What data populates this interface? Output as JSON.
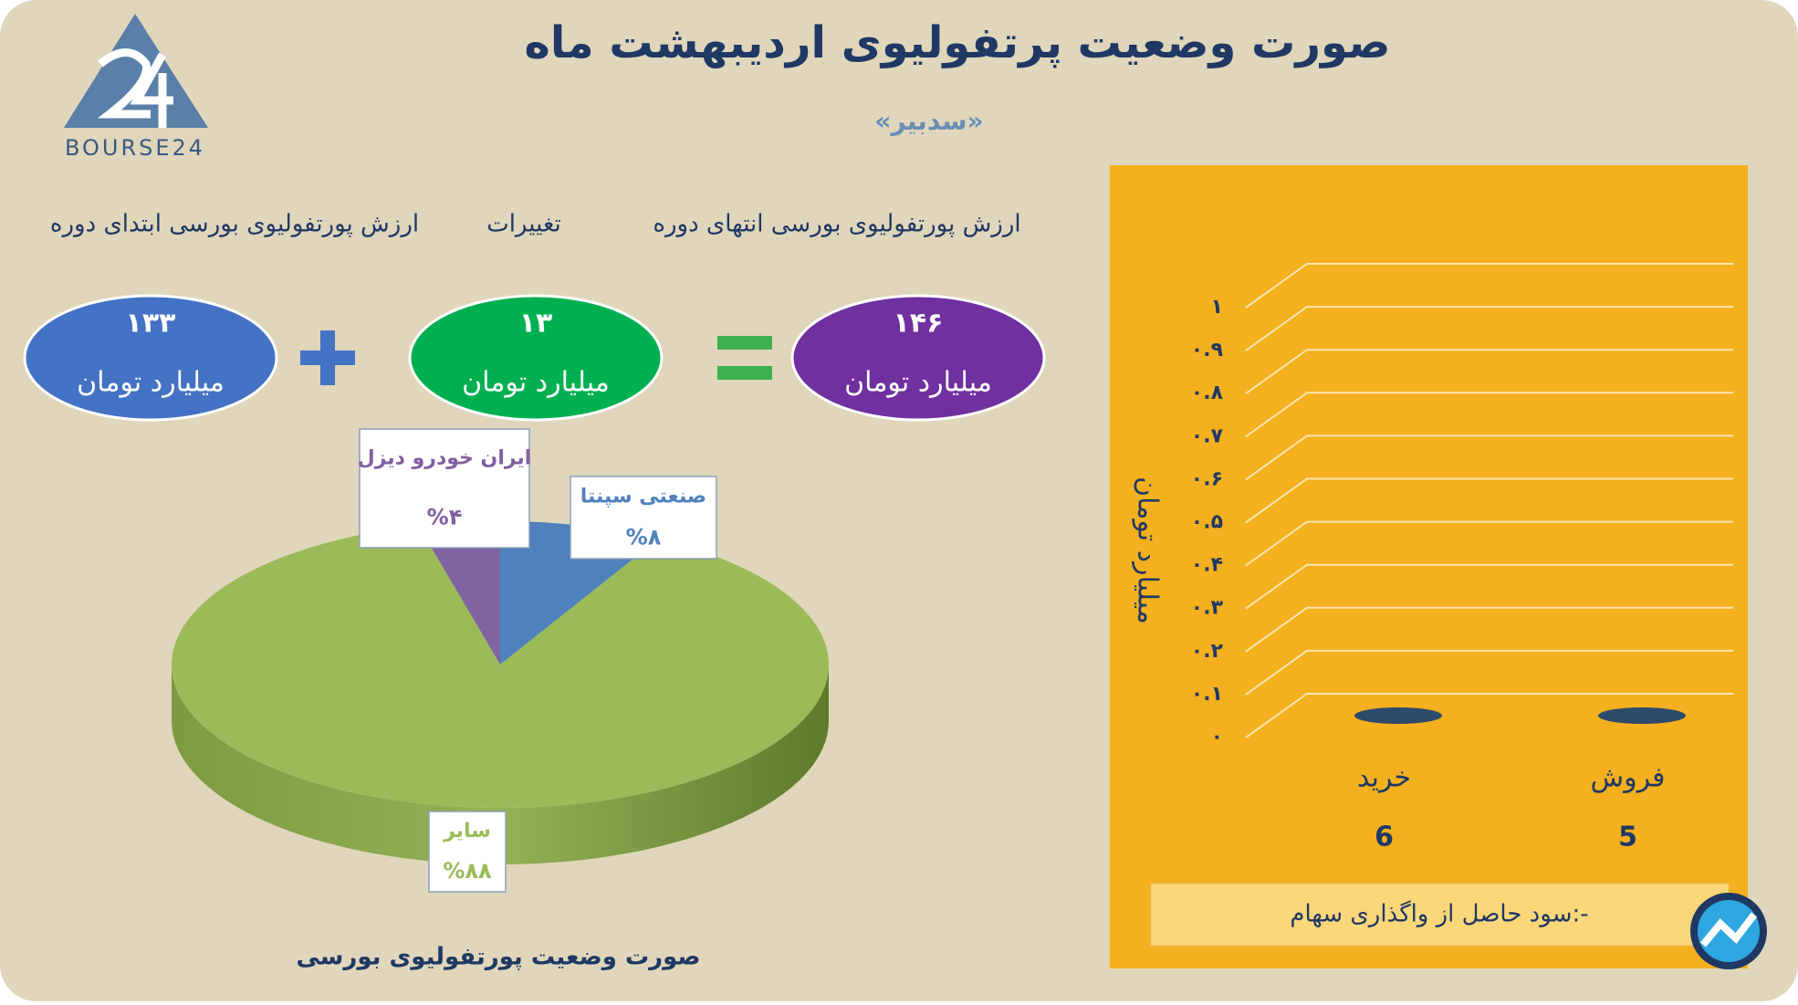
{
  "header": {
    "title": "صورت وضعیت پرتفولیوی اردیبهشت ماه",
    "subtitle": "«سدبیر»",
    "logo_text": "BOURSE24"
  },
  "summary": [
    {
      "label": "ارزش پورتفولیوی بورسی ابتدای دوره",
      "value": "۱۳۳",
      "unit": "میلیارد تومان"
    },
    {
      "label": "تغییرات",
      "value": "۱۳",
      "unit": "میلیارد تومان"
    },
    {
      "label": "ارزش پورتفولیوی بورسی انتهای دوره",
      "value": "۱۴۶",
      "unit": "میلیارد تومان"
    }
  ],
  "chart_data": [
    {
      "type": "pie",
      "title": "صورت وضعیت پورتفولیوی بورسی",
      "categories": [
        "صنعتی سپنتا",
        "سایر",
        "ایران خودرو دیزل"
      ],
      "values": [
        8,
        88,
        4
      ],
      "value_labels": [
        "%۸",
        "%۸۸",
        "%۴"
      ],
      "colors": [
        "#4f81bd",
        "#9bbb59",
        "#8064a2"
      ]
    },
    {
      "type": "bar",
      "y_label": "میلیارد تومان",
      "categories": [
        "خرید",
        "فروش"
      ],
      "values": [
        0,
        0
      ],
      "category_counts": [
        6,
        5
      ],
      "color": "#2e4a6b",
      "ylim": [
        0,
        1
      ],
      "yticks": [
        {
          "value": 0,
          "label": "۰"
        },
        {
          "value": 0.1,
          "label": "۰.۱"
        },
        {
          "value": 0.2,
          "label": "۰.۲"
        },
        {
          "value": 0.3,
          "label": "۰.۳"
        },
        {
          "value": 0.4,
          "label": "۰.۴"
        },
        {
          "value": 0.5,
          "label": "۰.۵"
        },
        {
          "value": 0.6,
          "label": "۰.۶"
        },
        {
          "value": 0.7,
          "label": "۰.۷"
        },
        {
          "value": 0.8,
          "label": "۰.۸"
        },
        {
          "value": 0.9,
          "label": "۰.۹"
        },
        {
          "value": 1,
          "label": "۱"
        }
      ],
      "grid": true,
      "note": "سود حاصل از واگذاری سهام:-"
    }
  ]
}
